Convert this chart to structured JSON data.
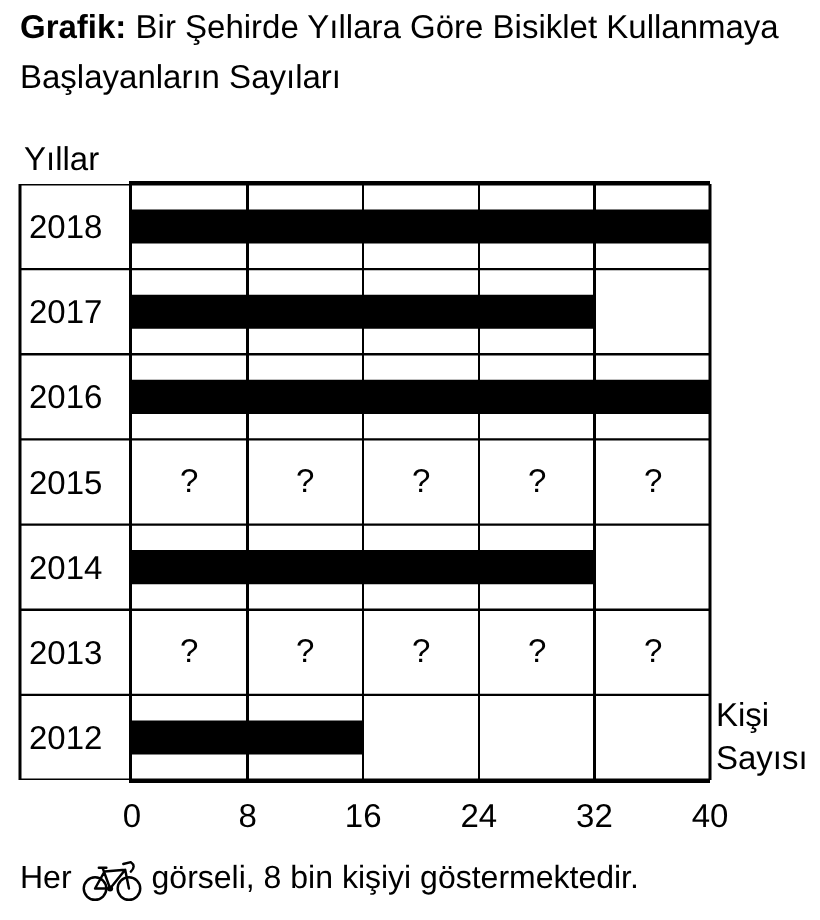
{
  "chart_data": {
    "type": "bar",
    "orientation": "horizontal",
    "title": "Grafik: Bir Şehirde Yıllara Göre Bisiklet Kullanmaya Başlayanların Sayıları",
    "xlabel": "Kişi Sayısı",
    "ylabel": "Yıllar",
    "categories": [
      "2018",
      "2017",
      "2016",
      "2015",
      "2014",
      "2013",
      "2012"
    ],
    "values": [
      40,
      32,
      40,
      null,
      32,
      null,
      16
    ],
    "color": "#000000",
    "xlim": [
      0,
      40
    ],
    "xticks": [
      0,
      8,
      16,
      24,
      32,
      40
    ],
    "grid": true,
    "annotations": [
      "?",
      "?",
      "?",
      "?",
      "?",
      "?",
      "?",
      "?",
      "?",
      "?",
      "Her",
      "görseli, 8 bin kişiyi göstermektedir."
    ]
  }
}
